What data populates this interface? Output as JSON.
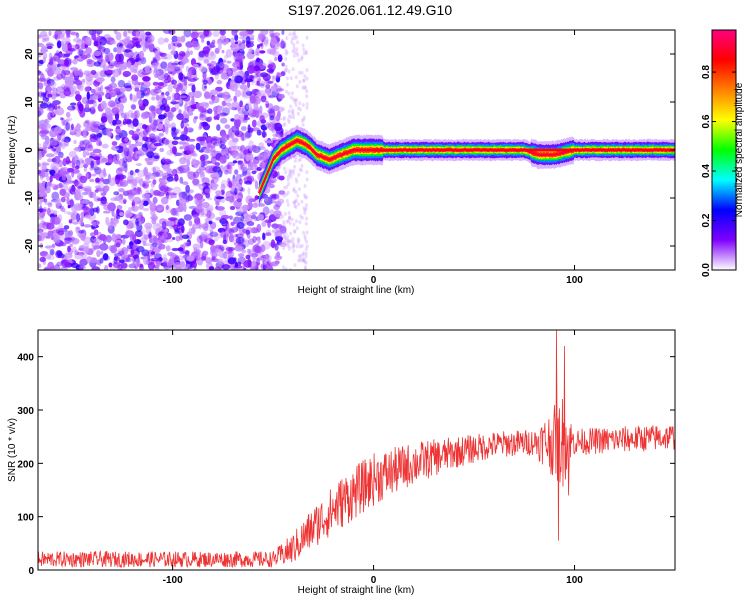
{
  "title": "S197.2026.061.12.49.G10",
  "chart_data": [
    {
      "type": "heatmap",
      "name": "spectrogram",
      "xlabel": "Height of straight line (km)",
      "ylabel": "Frequency (Hz)",
      "xlim": [
        -167,
        150
      ],
      "ylim": [
        -25,
        25
      ],
      "xticks": [
        -100,
        0,
        100
      ],
      "yticks": [
        -20,
        -10,
        0,
        10,
        20
      ],
      "noise_region_x": [
        -167,
        -45
      ],
      "signal_trace": [
        {
          "x": -57,
          "y": -9
        },
        {
          "x": -53,
          "y": -5
        },
        {
          "x": -50,
          "y": -2
        },
        {
          "x": -46,
          "y": 0
        },
        {
          "x": -42,
          "y": 1
        },
        {
          "x": -38,
          "y": 2
        },
        {
          "x": -33,
          "y": 1
        },
        {
          "x": -28,
          "y": -1
        },
        {
          "x": -22,
          "y": -2
        },
        {
          "x": -16,
          "y": -1
        },
        {
          "x": -10,
          "y": 0
        },
        {
          "x": 0,
          "y": 0
        },
        {
          "x": 30,
          "y": 0
        },
        {
          "x": 60,
          "y": 0
        },
        {
          "x": 75,
          "y": 0
        },
        {
          "x": 82,
          "y": -1
        },
        {
          "x": 90,
          "y": -1
        },
        {
          "x": 100,
          "y": 0
        },
        {
          "x": 110,
          "y": 0
        },
        {
          "x": 130,
          "y": 0
        },
        {
          "x": 150,
          "y": 0
        }
      ],
      "colorbar": {
        "label": "Normalized spectral amplitude",
        "range": [
          0.0,
          0.97
        ],
        "ticks": [
          0.0,
          0.2,
          0.4,
          0.6,
          0.8
        ],
        "tick_labels": [
          "0.0",
          "0.2",
          "0.4",
          "0.6",
          "0.8"
        ],
        "colors": [
          "#ffffff",
          "#7f00ff",
          "#0000ff",
          "#00ffff",
          "#00ff00",
          "#ffff00",
          "#ff8000",
          "#ff0000",
          "#ff0080"
        ]
      }
    },
    {
      "type": "line",
      "name": "snr",
      "xlabel": "Height of straight line (km)",
      "ylabel": "SNR (10 * v/v)",
      "xlim": [
        -167,
        150
      ],
      "ylim": [
        0,
        450
      ],
      "xticks": [
        -100,
        0,
        100
      ],
      "yticks": [
        0,
        100,
        200,
        300,
        400
      ],
      "line_color": "#ee3333",
      "envelope": [
        {
          "x": -167,
          "mean": 20,
          "spread": 15
        },
        {
          "x": -50,
          "mean": 20,
          "spread": 15
        },
        {
          "x": -40,
          "mean": 40,
          "spread": 30
        },
        {
          "x": -30,
          "mean": 80,
          "spread": 40
        },
        {
          "x": -15,
          "mean": 130,
          "spread": 50
        },
        {
          "x": 0,
          "mean": 170,
          "spread": 50
        },
        {
          "x": 20,
          "mean": 200,
          "spread": 40
        },
        {
          "x": 40,
          "mean": 220,
          "spread": 30
        },
        {
          "x": 60,
          "mean": 235,
          "spread": 25
        },
        {
          "x": 80,
          "mean": 240,
          "spread": 25
        },
        {
          "x": 88,
          "mean": 240,
          "spread": 60
        },
        {
          "x": 94,
          "mean": 240,
          "spread": 90
        },
        {
          "x": 100,
          "mean": 240,
          "spread": 25
        },
        {
          "x": 150,
          "mean": 250,
          "spread": 25
        }
      ],
      "spikes": [
        {
          "x": 91,
          "y": 450
        },
        {
          "x": 92,
          "y": 55
        },
        {
          "x": 95,
          "y": 420
        },
        {
          "x": 97,
          "y": 140
        }
      ]
    }
  ]
}
